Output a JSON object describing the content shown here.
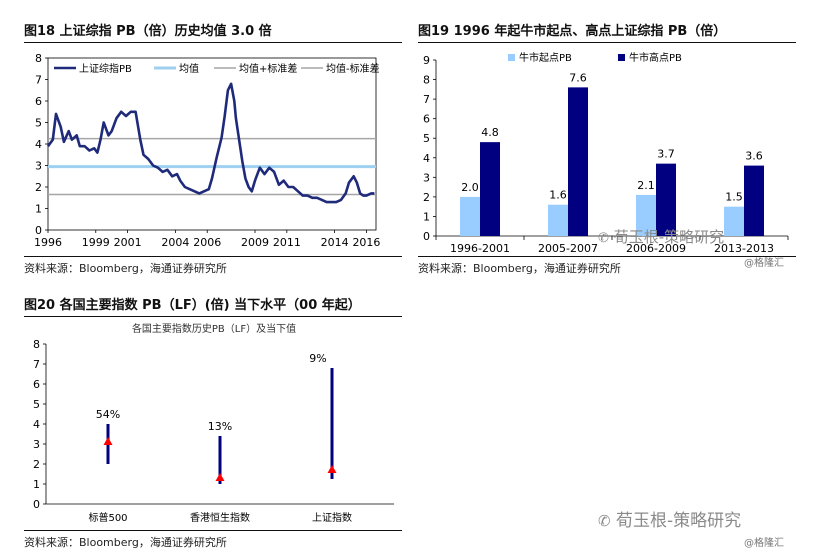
{
  "panels": {
    "fig18": {
      "title": "图18 上证综指 PB（倍）历史均值 3.0 倍",
      "source": "资料来源：Bloomberg，海通证券研究所"
    },
    "fig19": {
      "title": "图19 1996 年起牛市起点、高点上证综指  PB（倍）",
      "source": "资料来源：Bloomberg，海通证券研究所"
    },
    "fig20": {
      "title": "图20   各国主要指数 PB（LF）(倍) 当下水平（00 年起）",
      "source": "资料来源：Bloomberg，海通证券研究所"
    }
  },
  "watermarks": {
    "brand": "荀玉根-策略研究",
    "site": "@格隆汇"
  },
  "chart_data": [
    {
      "type": "line",
      "ylim": [
        0,
        8
      ],
      "yticks": [
        0,
        1,
        2,
        3,
        4,
        5,
        6,
        7,
        8
      ],
      "xlim": [
        1996,
        2016.6
      ],
      "xticks": [
        1996,
        1999,
        2001,
        2004,
        2006,
        2009,
        2011,
        2014,
        2016
      ],
      "legend": [
        "上证综指PB",
        "均值",
        "均值+标准差",
        "均值-标准差"
      ],
      "legend_position": "top",
      "colors": {
        "pb": "#1f2a7a",
        "mean": "#9fd0f0",
        "band": "#a6a6a6"
      },
      "mean": 2.95,
      "upper": 4.25,
      "lower": 1.65,
      "series_pb": {
        "x": [
          1996.0,
          1996.3,
          1996.5,
          1996.8,
          1997.0,
          1997.3,
          1997.5,
          1997.8,
          1998.0,
          1998.3,
          1998.6,
          1998.9,
          1999.1,
          1999.3,
          1999.5,
          1999.8,
          2000.0,
          2000.3,
          2000.6,
          2000.9,
          2001.2,
          2001.5,
          2001.8,
          2002.0,
          2002.3,
          2002.6,
          2002.9,
          2003.2,
          2003.5,
          2003.8,
          2004.1,
          2004.3,
          2004.6,
          2004.9,
          2005.2,
          2005.5,
          2005.8,
          2006.1,
          2006.3,
          2006.6,
          2006.9,
          2007.1,
          2007.3,
          2007.5,
          2007.7,
          2007.8,
          2008.0,
          2008.2,
          2008.4,
          2008.6,
          2008.8,
          2009.0,
          2009.3,
          2009.6,
          2009.9,
          2010.2,
          2010.5,
          2010.8,
          2011.1,
          2011.4,
          2011.7,
          2012.0,
          2012.3,
          2012.6,
          2012.9,
          2013.2,
          2013.5,
          2013.8,
          2014.1,
          2014.4,
          2014.7,
          2014.9,
          2015.2,
          2015.4,
          2015.6,
          2015.8,
          2016.0,
          2016.3,
          2016.5
        ],
        "y": [
          3.9,
          4.2,
          5.4,
          4.8,
          4.1,
          4.6,
          4.2,
          4.4,
          3.9,
          3.9,
          3.7,
          3.8,
          3.6,
          4.2,
          5.0,
          4.4,
          4.6,
          5.2,
          5.5,
          5.3,
          5.5,
          5.5,
          4.2,
          3.5,
          3.3,
          3.0,
          2.9,
          2.7,
          2.8,
          2.5,
          2.6,
          2.3,
          2.0,
          1.9,
          1.8,
          1.7,
          1.8,
          1.9,
          2.4,
          3.4,
          4.3,
          5.3,
          6.5,
          6.8,
          6.0,
          5.2,
          4.2,
          3.2,
          2.4,
          2.0,
          1.8,
          2.3,
          2.9,
          2.6,
          2.9,
          2.7,
          2.1,
          2.3,
          2.0,
          2.0,
          1.8,
          1.6,
          1.6,
          1.5,
          1.5,
          1.4,
          1.3,
          1.3,
          1.3,
          1.4,
          1.7,
          2.2,
          2.5,
          2.2,
          1.7,
          1.6,
          1.6,
          1.7,
          1.7
        ]
      }
    },
    {
      "type": "bar",
      "categories": [
        "1996-2001",
        "2005-2007",
        "2006-2009",
        "2013-2013"
      ],
      "series": [
        {
          "name": "牛市起点PB",
          "values": [
            2.0,
            1.6,
            2.1,
            1.5
          ],
          "color": "#99ccff"
        },
        {
          "name": "牛市高点PB",
          "values": [
            4.8,
            7.6,
            3.7,
            3.6
          ],
          "color": "#000080"
        }
      ],
      "labels": [
        [
          "2.0",
          "1.6",
          "2.1",
          "1.5"
        ],
        [
          "4.8",
          "7.6",
          "3.7",
          "3.6"
        ]
      ],
      "ylim": [
        0,
        9
      ],
      "yticks": [
        0,
        1,
        2,
        3,
        4,
        5,
        6,
        7,
        8,
        9
      ],
      "legend_position": "top"
    },
    {
      "type": "range",
      "title": "各国主要指数历史PB（LF）及当下值",
      "categories": [
        "标普500",
        "香港恒生指数",
        "上证指数"
      ],
      "ranges": [
        [
          2.0,
          4.0
        ],
        [
          1.0,
          3.4
        ],
        [
          1.25,
          6.8
        ]
      ],
      "current": [
        3.1,
        1.3,
        1.7
      ],
      "percentile_labels": [
        "54%",
        "13%",
        "9%"
      ],
      "ylim": [
        0,
        8
      ],
      "yticks": [
        0,
        1,
        2,
        3,
        4,
        5,
        6,
        7,
        8
      ],
      "colors": {
        "range": "#000080",
        "marker": "#ff0000"
      }
    }
  ]
}
